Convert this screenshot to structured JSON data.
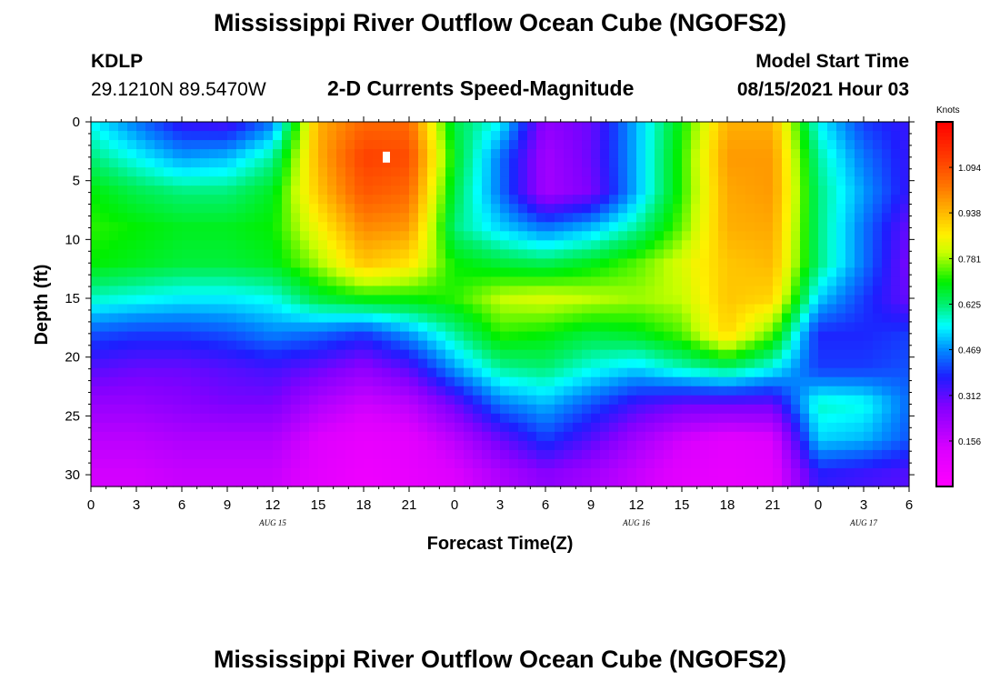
{
  "title": "Mississippi River Outflow Ocean Cube (NGOFS2)",
  "footer_title": "Mississippi River Outflow Ocean Cube (NGOFS2)",
  "station": {
    "id": "KDLP",
    "coords": "29.1210N  89.5470W"
  },
  "plot_title": "2-D Currents Speed-Magnitude",
  "model_start": {
    "label": "Model Start Time",
    "value": "08/15/2021 Hour 03"
  },
  "chart_data": {
    "type": "heatmap",
    "xlabel": "Forecast Time(Z)",
    "ylabel": "Depth (ft)",
    "x_tick_labels": [
      "0",
      "3",
      "6",
      "9",
      "12",
      "15",
      "18",
      "21",
      "0",
      "3",
      "6",
      "9",
      "12",
      "15",
      "18",
      "21",
      "0",
      "3",
      "6"
    ],
    "date_labels": [
      "AUG 15",
      "AUG 16",
      "AUG 17"
    ],
    "xlim_hours": [
      0,
      54
    ],
    "ylim": [
      0,
      31
    ],
    "y_ticks": [
      0,
      5,
      10,
      15,
      20,
      25,
      30
    ],
    "colorbar": {
      "label": "Knots",
      "ticks": [
        0.156,
        0.312,
        0.469,
        0.625,
        0.781,
        0.938,
        1.094
      ],
      "tick_labels": [
        "0.156",
        "0.312",
        "0.469",
        "0.625",
        "0.781",
        "0.938",
        "1.094"
      ],
      "range": [
        0,
        1.25
      ]
    },
    "depths": [
      0,
      3,
      6,
      9,
      12,
      15,
      18,
      21,
      24,
      27,
      30
    ],
    "hours": [
      0,
      3,
      6,
      9,
      12,
      15,
      18,
      21,
      24,
      27,
      30,
      33,
      36,
      39,
      42,
      45,
      48,
      51,
      54
    ],
    "values": [
      [
        0.55,
        0.45,
        0.35,
        0.33,
        0.45,
        0.95,
        1.05,
        1.05,
        0.65,
        0.55,
        0.25,
        0.3,
        0.5,
        0.7,
        0.95,
        0.95,
        0.55,
        0.4,
        0.35
      ],
      [
        0.62,
        0.55,
        0.48,
        0.5,
        0.6,
        0.95,
        1.12,
        1.1,
        0.68,
        0.45,
        0.22,
        0.3,
        0.5,
        0.72,
        0.98,
        0.98,
        0.6,
        0.45,
        0.35
      ],
      [
        0.7,
        0.65,
        0.62,
        0.62,
        0.68,
        0.92,
        1.08,
        1.05,
        0.65,
        0.45,
        0.22,
        0.28,
        0.5,
        0.72,
        0.96,
        0.98,
        0.62,
        0.48,
        0.35
      ],
      [
        0.72,
        0.7,
        0.68,
        0.68,
        0.7,
        0.85,
        1.0,
        0.98,
        0.62,
        0.52,
        0.45,
        0.5,
        0.6,
        0.75,
        0.95,
        0.96,
        0.62,
        0.45,
        0.3
      ],
      [
        0.7,
        0.68,
        0.66,
        0.66,
        0.68,
        0.78,
        0.92,
        0.88,
        0.7,
        0.66,
        0.64,
        0.68,
        0.74,
        0.82,
        0.92,
        0.94,
        0.62,
        0.45,
        0.28
      ],
      [
        0.58,
        0.56,
        0.54,
        0.54,
        0.56,
        0.66,
        0.7,
        0.7,
        0.72,
        0.8,
        0.82,
        0.8,
        0.78,
        0.8,
        0.92,
        0.9,
        0.52,
        0.4,
        0.3
      ],
      [
        0.42,
        0.4,
        0.4,
        0.42,
        0.46,
        0.44,
        0.4,
        0.48,
        0.6,
        0.72,
        0.7,
        0.66,
        0.68,
        0.74,
        0.9,
        0.74,
        0.38,
        0.38,
        0.4
      ],
      [
        0.32,
        0.3,
        0.3,
        0.32,
        0.34,
        0.3,
        0.25,
        0.32,
        0.48,
        0.6,
        0.62,
        0.56,
        0.52,
        0.58,
        0.62,
        0.55,
        0.4,
        0.4,
        0.42
      ],
      [
        0.24,
        0.24,
        0.26,
        0.28,
        0.28,
        0.2,
        0.15,
        0.18,
        0.3,
        0.45,
        0.5,
        0.42,
        0.34,
        0.3,
        0.3,
        0.3,
        0.58,
        0.56,
        0.44
      ],
      [
        0.18,
        0.18,
        0.2,
        0.2,
        0.2,
        0.12,
        0.08,
        0.1,
        0.18,
        0.3,
        0.4,
        0.32,
        0.22,
        0.14,
        0.1,
        0.12,
        0.52,
        0.5,
        0.42
      ],
      [
        0.14,
        0.14,
        0.16,
        0.16,
        0.16,
        0.1,
        0.06,
        0.08,
        0.12,
        0.2,
        0.26,
        0.22,
        0.16,
        0.1,
        0.08,
        0.1,
        0.36,
        0.34,
        0.32
      ]
    ],
    "max_marker": {
      "hour": 19.5,
      "depth": 3
    },
    "grid": false
  }
}
